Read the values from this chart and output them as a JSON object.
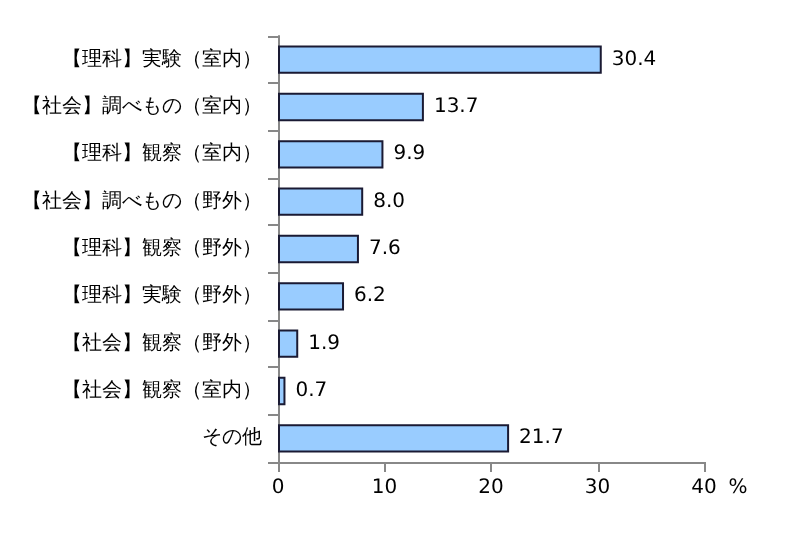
{
  "chart_data": {
    "type": "bar",
    "orientation": "horizontal",
    "xlabel": "%",
    "categories": [
      "【理科】実験（室内）",
      "【社会】調べもの（室内）",
      "【理科】観察（室内）",
      "【社会】調べもの（野外）",
      "【理科】観察（野外）",
      "【理科】実験（野外）",
      "【社会】観察（野外）",
      "【社会】観察（室内）",
      "その他"
    ],
    "values": [
      30.4,
      13.7,
      9.9,
      8.0,
      7.6,
      6.2,
      1.9,
      0.7,
      21.7
    ],
    "value_labels": [
      "30.4",
      "13.7",
      "9.9",
      "8.0",
      "7.6",
      "6.2",
      "1.9",
      "0.7",
      "21.7"
    ],
    "color": "#99ccff",
    "xlim": [
      0,
      40
    ],
    "xticks": [
      0,
      10,
      20,
      30,
      40
    ],
    "grid": false
  }
}
